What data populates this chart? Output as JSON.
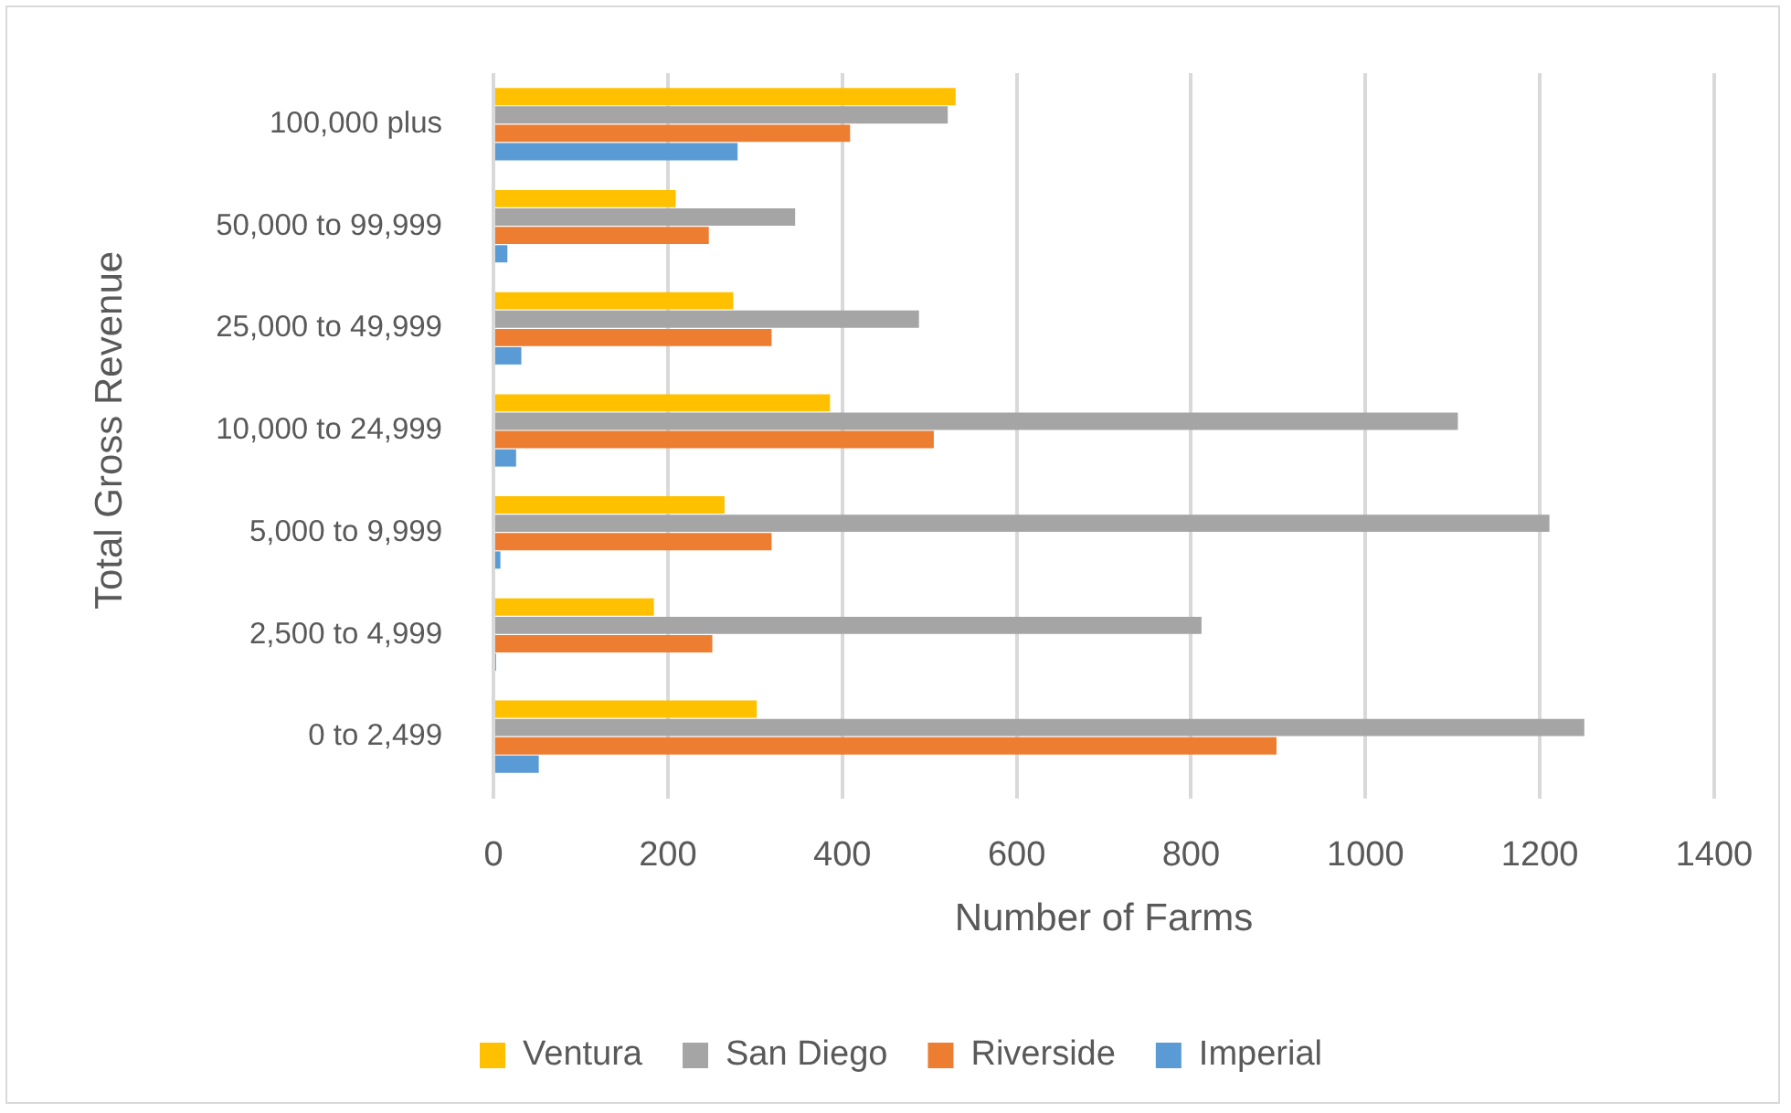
{
  "chart_data": {
    "type": "bar",
    "orientation": "horizontal",
    "xlabel": "Number of Farms",
    "ylabel": "Total Gross Revenue",
    "categories": [
      "100,000 plus",
      "50,000 to 99,999",
      "25,000 to 49,999",
      "10,000 to 24,999",
      "5,000 to 9,999",
      "2,500 to 4,999",
      "0 to 2,499"
    ],
    "series": [
      {
        "name": "Ventura",
        "color": "#ffc000",
        "values": [
          530,
          209,
          275,
          386,
          265,
          184,
          302
        ]
      },
      {
        "name": "San Diego",
        "color": "#a5a5a5",
        "values": [
          521,
          346,
          488,
          1106,
          1211,
          812,
          1251
        ]
      },
      {
        "name": "Riverside",
        "color": "#ed7d31",
        "values": [
          409,
          247,
          319,
          505,
          319,
          251,
          898
        ]
      },
      {
        "name": "Imperial",
        "color": "#5b9bd5",
        "values": [
          280,
          16,
          32,
          26,
          8,
          3,
          52
        ]
      }
    ],
    "xlim": [
      0,
      1400
    ],
    "xticks": [
      0,
      200,
      400,
      600,
      800,
      1000,
      1200,
      1400
    ],
    "grid": "x",
    "legend": "bottom"
  }
}
